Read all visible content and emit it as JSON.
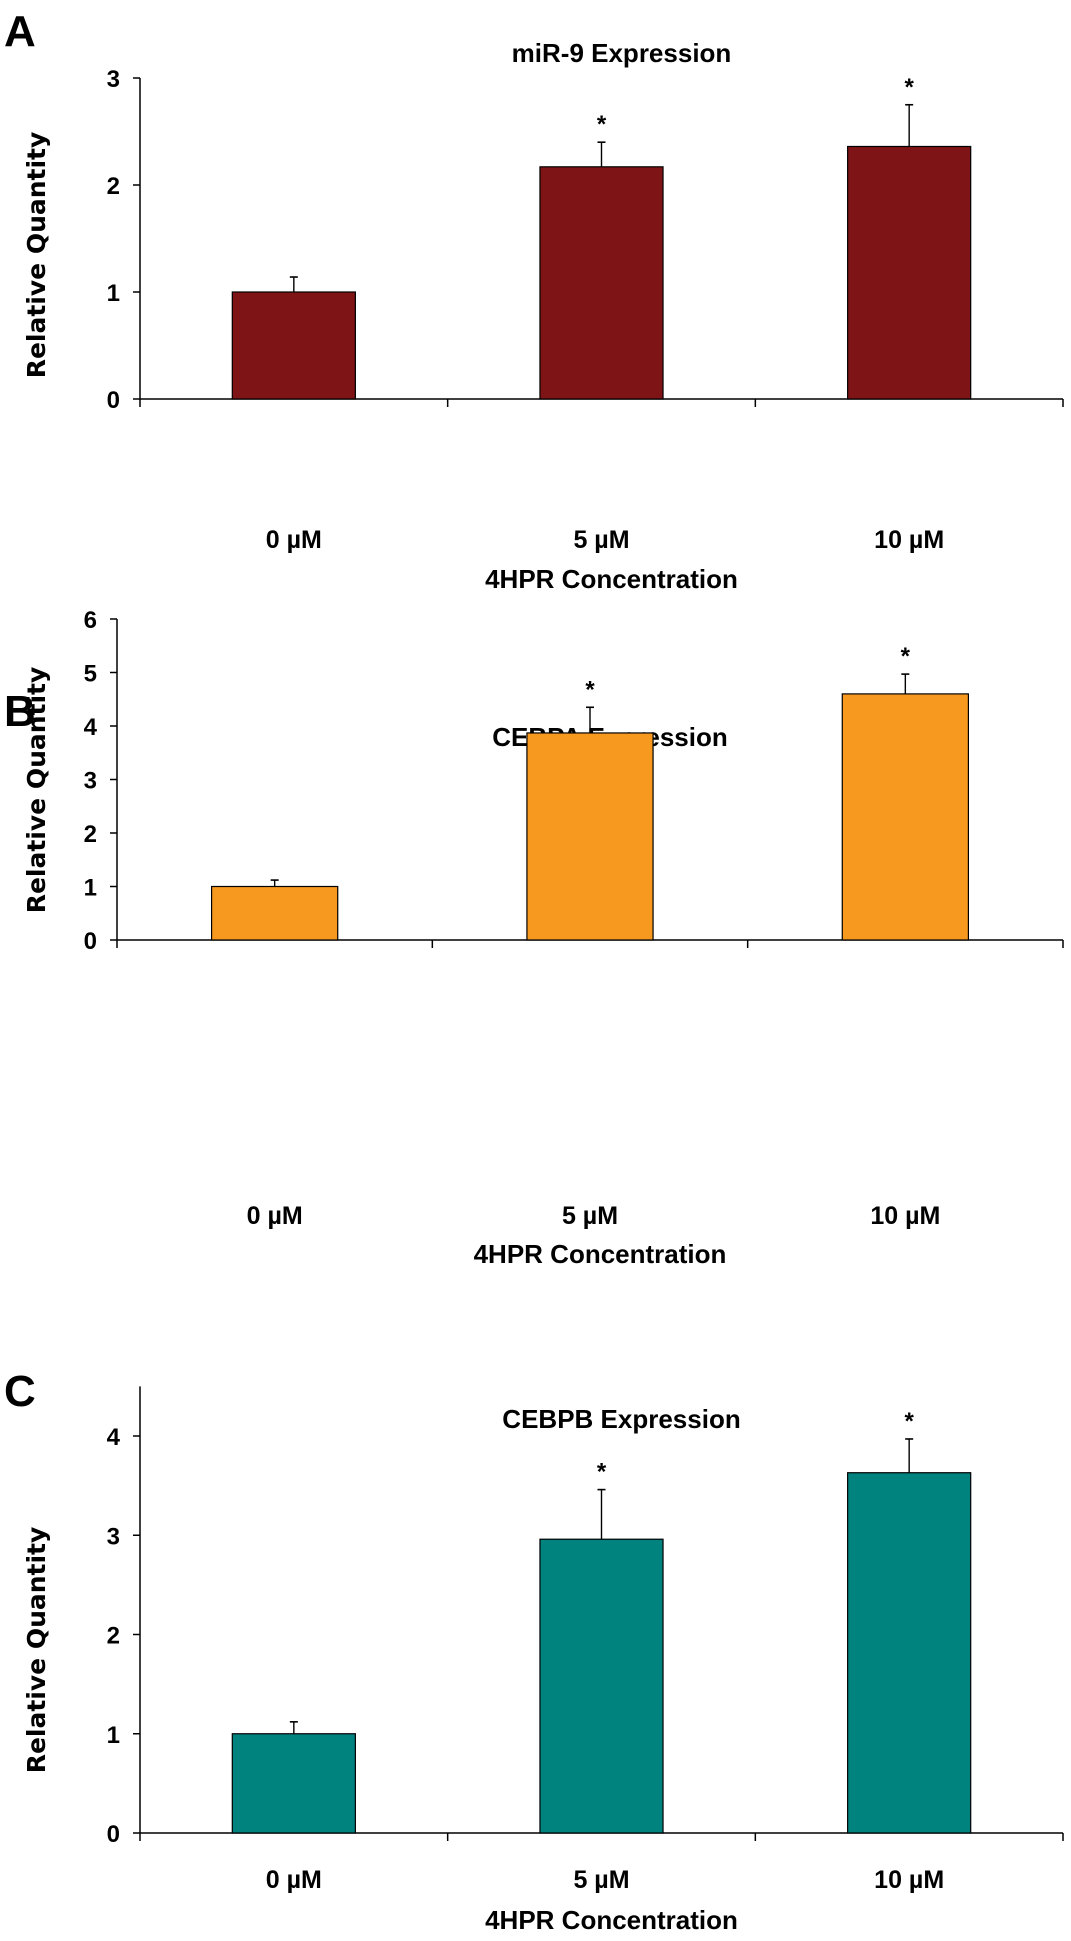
{
  "chart_data": [
    {
      "panel": "A",
      "type": "bar",
      "title": "miR-9 Expression",
      "xlabel": "4HPR Concentration",
      "ylabel": "Relative Quantity",
      "categories": [
        "0 µM",
        "5 µM",
        "10 µM"
      ],
      "values": [
        1.0,
        2.17,
        2.36
      ],
      "error_upper": [
        0.14,
        0.23,
        0.39
      ],
      "significance": [
        "",
        "*",
        "*"
      ],
      "ylim": [
        0,
        3
      ],
      "yticks": [
        0,
        1,
        2,
        3
      ],
      "bar_color": "#7E1416",
      "grid": false,
      "legend": "none"
    },
    {
      "panel": "B",
      "type": "bar",
      "title": "CEBPA Expression",
      "xlabel": "4HPR Concentration",
      "ylabel": "Relative Quantity",
      "categories": [
        "0 µM",
        "5 µM",
        "10 µM"
      ],
      "values": [
        1.0,
        3.87,
        4.6
      ],
      "error_upper": [
        0.12,
        0.48,
        0.37
      ],
      "significance": [
        "",
        "*",
        "*"
      ],
      "ylim": [
        0,
        6
      ],
      "yticks": [
        0,
        1,
        2,
        3,
        4,
        5,
        6
      ],
      "bar_color": "#F7991F",
      "grid": false,
      "legend": "none"
    },
    {
      "panel": "C",
      "type": "bar",
      "title": "CEBPB Expression",
      "xlabel": "4HPR Concentration",
      "ylabel": "Relative Quantity",
      "categories": [
        "0 µM",
        "5 µM",
        "10 µM"
      ],
      "values": [
        1.0,
        2.96,
        3.63
      ],
      "error_upper": [
        0.12,
        0.5,
        0.34
      ],
      "significance": [
        "",
        "*",
        "*"
      ],
      "ylim": [
        0,
        4.5
      ],
      "yticks": [
        0,
        1,
        2,
        3,
        4
      ],
      "bar_color": "#00827F",
      "grid": false,
      "legend": "none"
    }
  ]
}
